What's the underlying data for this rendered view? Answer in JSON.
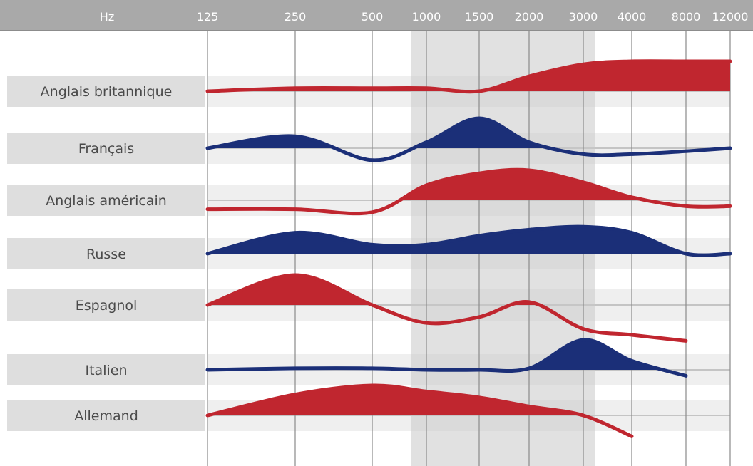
{
  "chart_data": {
    "type": "area",
    "title": "",
    "xlabel": "Hz",
    "ylabel": "",
    "x_scale": "categorical-frequency",
    "x_ticks": [
      "125",
      "250",
      "500",
      "1000",
      "1500",
      "2000",
      "3000",
      "4000",
      "8000",
      "12000"
    ],
    "highlight_band": {
      "from": "1000",
      "to": "3000"
    },
    "grid": true,
    "colors": {
      "red": "#c0262f",
      "blue": "#1b2f78",
      "label_band": "#dedede",
      "header": "#a9a9a9"
    },
    "series": [
      {
        "name": "Anglais britannique",
        "color": "red",
        "profile": [
          {
            "x": "125",
            "level": 0.0
          },
          {
            "x": "250",
            "level": 0.1
          },
          {
            "x": "500",
            "level": 0.1
          },
          {
            "x": "1000",
            "level": 0.1
          },
          {
            "x": "1500",
            "level": 0.0
          },
          {
            "x": "2000",
            "level": 0.5
          },
          {
            "x": "3000",
            "level": 0.9
          },
          {
            "x": "4000",
            "level": 1.0
          },
          {
            "x": "8000",
            "level": 1.0
          },
          {
            "x": "12000",
            "level": 1.0
          }
        ]
      },
      {
        "name": "Français",
        "color": "blue",
        "profile": [
          {
            "x": "125",
            "level": 0.0
          },
          {
            "x": "250",
            "level": 0.4
          },
          {
            "x": "500",
            "level": -0.4
          },
          {
            "x": "1000",
            "level": 0.2
          },
          {
            "x": "1500",
            "level": 1.0
          },
          {
            "x": "2000",
            "level": 0.2
          },
          {
            "x": "3000",
            "level": -0.2
          },
          {
            "x": "4000",
            "level": -0.2
          },
          {
            "x": "8000",
            "level": -0.1
          },
          {
            "x": "12000",
            "level": 0.0
          }
        ]
      },
      {
        "name": "Anglais américain",
        "color": "red",
        "profile": [
          {
            "x": "125",
            "level": -0.3
          },
          {
            "x": "250",
            "level": -0.3
          },
          {
            "x": "500",
            "level": -0.4
          },
          {
            "x": "1000",
            "level": 0.5
          },
          {
            "x": "1500",
            "level": 0.9
          },
          {
            "x": "2000",
            "level": 1.0
          },
          {
            "x": "3000",
            "level": 0.6
          },
          {
            "x": "4000",
            "level": 0.1
          },
          {
            "x": "8000",
            "level": -0.2
          },
          {
            "x": "12000",
            "level": -0.2
          }
        ]
      },
      {
        "name": "Russe",
        "color": "blue",
        "profile": [
          {
            "x": "125",
            "level": 0.0
          },
          {
            "x": "250",
            "level": 0.7
          },
          {
            "x": "500",
            "level": 0.3
          },
          {
            "x": "1000",
            "level": 0.3
          },
          {
            "x": "1500",
            "level": 0.6
          },
          {
            "x": "2000",
            "level": 0.8
          },
          {
            "x": "3000",
            "level": 0.9
          },
          {
            "x": "4000",
            "level": 0.7
          },
          {
            "x": "8000",
            "level": 0.0
          },
          {
            "x": "12000",
            "level": 0.0
          }
        ]
      },
      {
        "name": "Espagnol",
        "color": "red",
        "profile": [
          {
            "x": "125",
            "level": 0.0
          },
          {
            "x": "250",
            "level": 1.0
          },
          {
            "x": "500",
            "level": 0.0
          },
          {
            "x": "1000",
            "level": -0.6
          },
          {
            "x": "1500",
            "level": -0.4
          },
          {
            "x": "2000",
            "level": 0.1
          },
          {
            "x": "3000",
            "level": -0.8
          },
          {
            "x": "4000",
            "level": -1.0
          },
          {
            "x": "8000",
            "level": -1.2
          }
        ]
      },
      {
        "name": "Italien",
        "color": "blue",
        "profile": [
          {
            "x": "125",
            "level": 0.0
          },
          {
            "x": "250",
            "level": 0.05
          },
          {
            "x": "500",
            "level": 0.05
          },
          {
            "x": "1000",
            "level": 0.0
          },
          {
            "x": "1500",
            "level": 0.0
          },
          {
            "x": "2000",
            "level": 0.05
          },
          {
            "x": "3000",
            "level": 1.0
          },
          {
            "x": "4000",
            "level": 0.3
          },
          {
            "x": "8000",
            "level": -0.2
          }
        ]
      },
      {
        "name": "Allemand",
        "color": "red",
        "profile": [
          {
            "x": "125",
            "level": 0.0
          },
          {
            "x": "250",
            "level": 0.7
          },
          {
            "x": "500",
            "level": 1.0
          },
          {
            "x": "1000",
            "level": 0.8
          },
          {
            "x": "1500",
            "level": 0.6
          },
          {
            "x": "2000",
            "level": 0.3
          },
          {
            "x": "3000",
            "level": 0.0
          },
          {
            "x": "4000",
            "level": -0.7
          }
        ]
      }
    ]
  }
}
